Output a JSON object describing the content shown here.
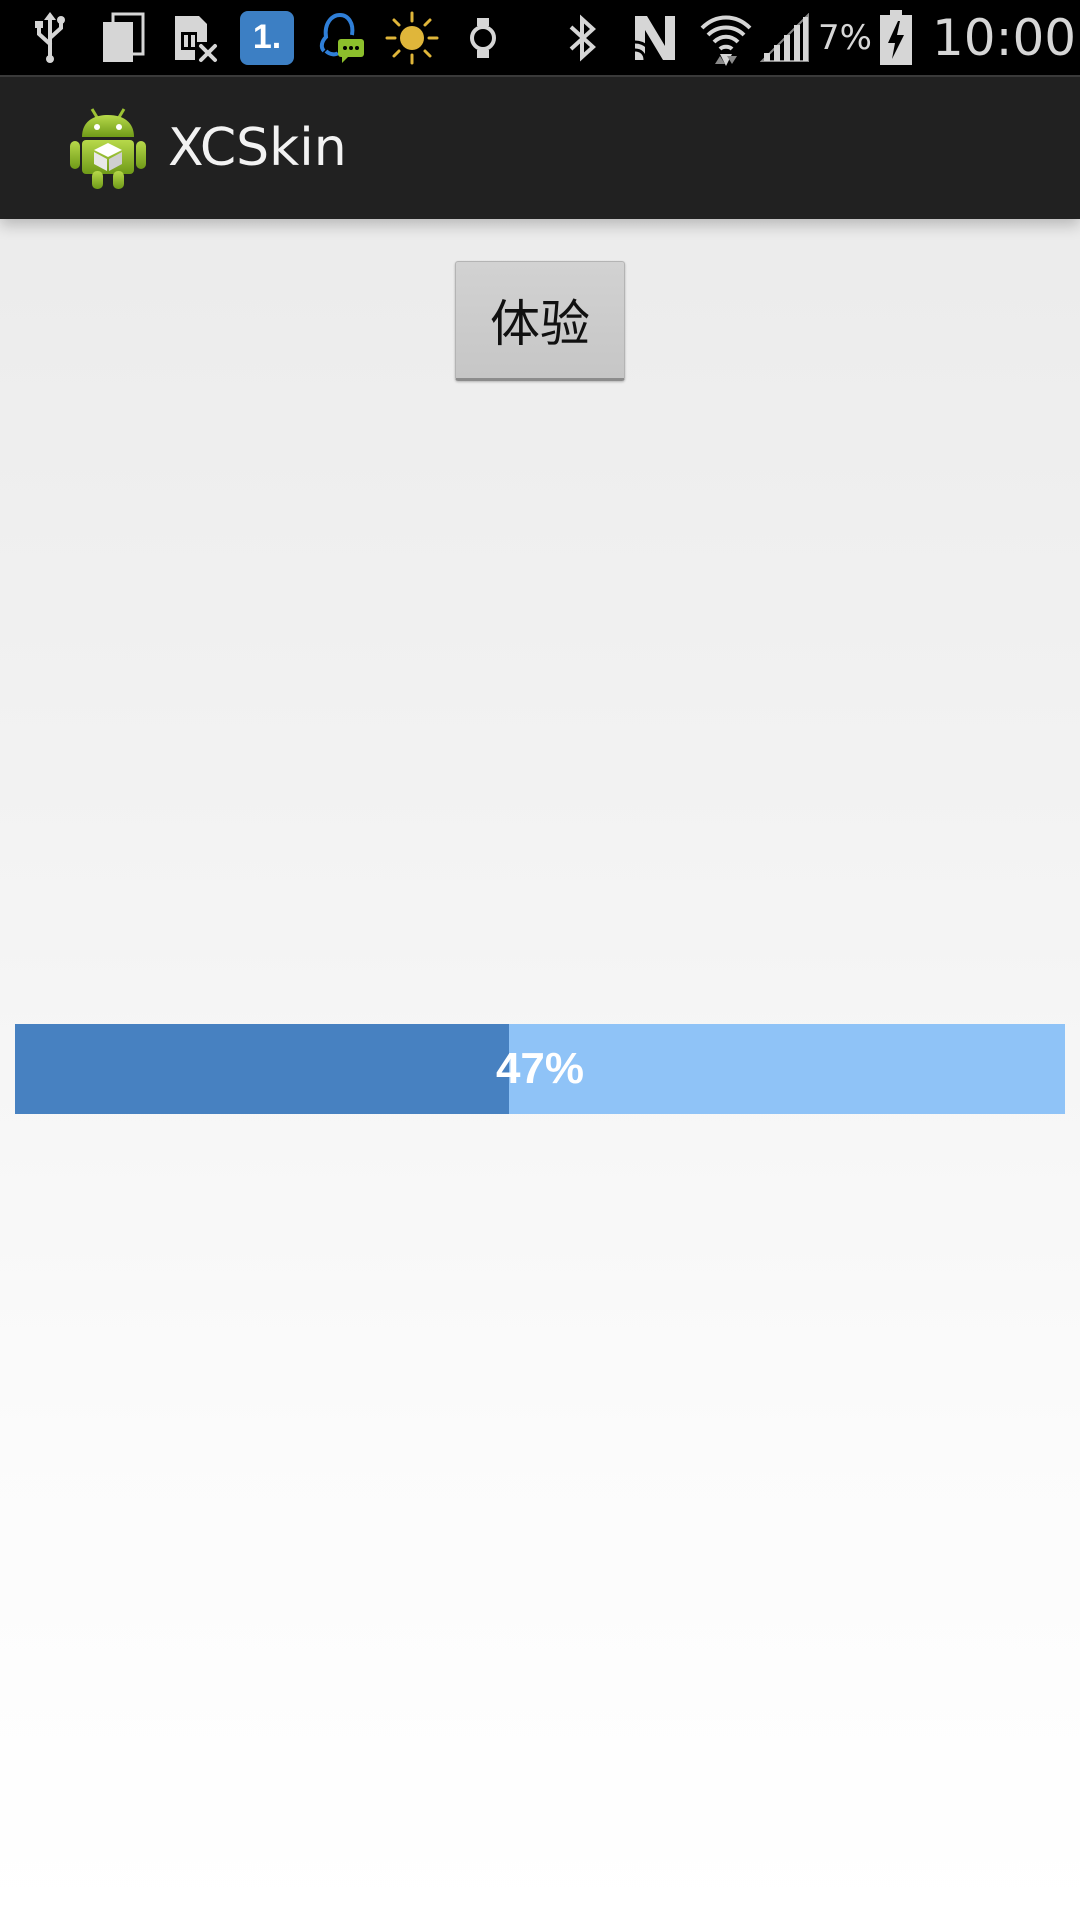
{
  "status_bar": {
    "battery_percent": "7%",
    "time": "10:00",
    "notification_badge": "1.",
    "icons": [
      "usb-icon",
      "copy-icon",
      "sim-card-error-icon",
      "app-one-notification-icon",
      "qq-message-icon",
      "brightness-icon",
      "watch-icon",
      "bluetooth-icon",
      "nfc-icon",
      "wifi-icon",
      "signal-icon",
      "battery-charging-icon"
    ]
  },
  "action_bar": {
    "title": "XCSkin",
    "icon": "android-app-icon"
  },
  "main": {
    "experience_button_label": "体验",
    "progress": {
      "value": 0.47,
      "label": "47%",
      "fill_color": "#4781c1",
      "track_color": "#8fc3f7"
    }
  }
}
